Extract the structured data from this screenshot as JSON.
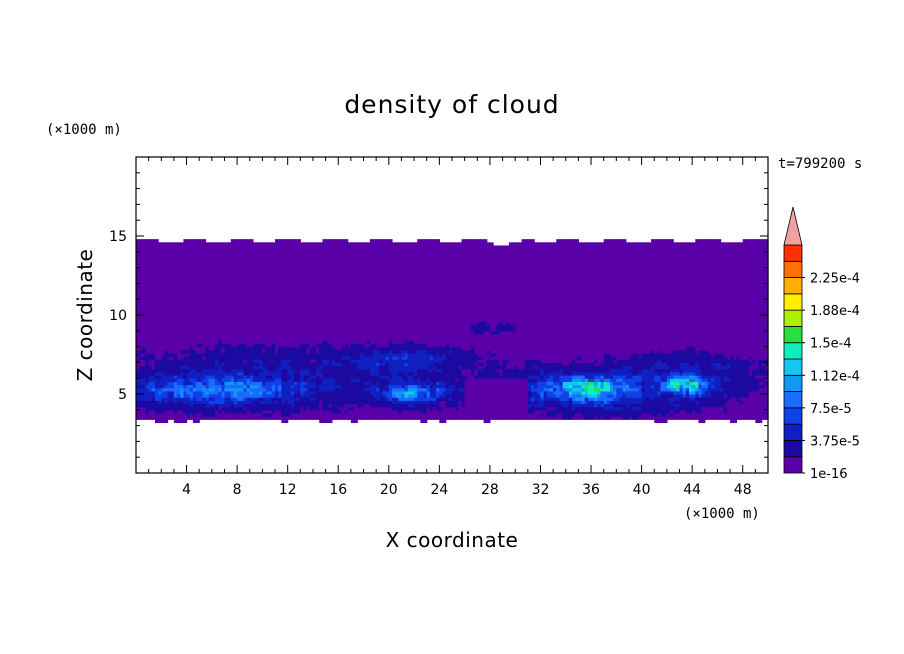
{
  "chart_data": {
    "type": "heatmap",
    "title": "density of cloud",
    "xlabel": "X coordinate",
    "ylabel": "Z coordinate",
    "x_unit": "(×1000 m)",
    "y_unit": "(×1000 m)",
    "time_label": "t=799200 s",
    "xlim": [
      0,
      50
    ],
    "ylim": [
      0,
      20
    ],
    "x_ticks": [
      4,
      8,
      12,
      16,
      20,
      24,
      28,
      32,
      36,
      40,
      44,
      48
    ],
    "y_ticks": [
      5,
      10,
      15
    ],
    "colorbar": {
      "levels": [
        1e-16,
        1.875e-05,
        3.75e-05,
        5.625e-05,
        7.5e-05,
        9.375e-05,
        0.0001125,
        0.00013125,
        0.00015,
        0.00016875,
        0.0001875,
        0.00020625,
        0.000225,
        0.00024375
      ],
      "labels": [
        "1e-16",
        "3.75e-5",
        "7.5e-5",
        "1.12e-4",
        "1.5e-4",
        "1.88e-4",
        "2.25e-4"
      ],
      "colors": [
        "#5a00a8",
        "#1c0aa0",
        "#1020c0",
        "#1040e8",
        "#1a6cff",
        "#1098f5",
        "#10c8f0",
        "#10eec0",
        "#28e040",
        "#aaf000",
        "#ffee00",
        "#ffb000",
        "#ff7000",
        "#ff3000",
        "#f0a0a0"
      ],
      "extend": "max"
    },
    "field_description": {
      "cloud_layer_z": [
        3.5,
        14.7
      ],
      "region_values": [
        {
          "x": [
            0,
            50
          ],
          "z": [
            3.5,
            14.7
          ],
          "density": 1e-16
        },
        {
          "x": [
            0,
            25
          ],
          "z": [
            4.0,
            8.5
          ],
          "density": 3.75e-05
        },
        {
          "x": [
            0,
            12
          ],
          "z": [
            4.5,
            6.0
          ],
          "density": 9.4e-05
        },
        {
          "x": [
            19,
            24
          ],
          "z": [
            4.5,
            5.5
          ],
          "density": 0.000112
        },
        {
          "x": [
            33,
            38
          ],
          "z": [
            4.8,
            6.0
          ],
          "density": 0.000131
        },
        {
          "x": [
            42,
            45
          ],
          "z": [
            5.0,
            6.0
          ],
          "density": 0.000131
        },
        {
          "x": [
            30,
            50
          ],
          "z": [
            3.8,
            7.5
          ],
          "density": 3.75e-05
        }
      ]
    }
  }
}
